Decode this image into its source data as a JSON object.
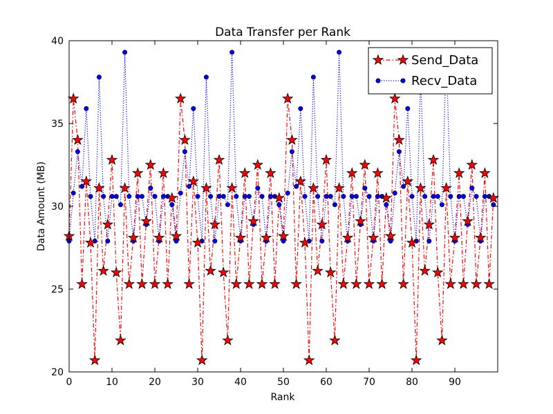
{
  "chart_data": {
    "type": "line",
    "title": "Data Transfer per Rank",
    "xlabel": "Rank",
    "ylabel": "Data Amount (MB)",
    "xlim": [
      0,
      100
    ],
    "ylim": [
      20,
      40
    ],
    "xticks": [
      0,
      10,
      20,
      30,
      40,
      50,
      60,
      70,
      80,
      90
    ],
    "yticks": [
      20,
      25,
      30,
      35,
      40
    ],
    "grid": false,
    "legend_position": "top-right",
    "series": [
      {
        "name": "Send_Data",
        "color": "#ff0000",
        "line_style": "dashdot",
        "marker": "star",
        "x": [
          0,
          1,
          2,
          3,
          4,
          5,
          6,
          7,
          8,
          9,
          10,
          11,
          12,
          13,
          14,
          15,
          16,
          17,
          18,
          19,
          20,
          21,
          22,
          23,
          24,
          25,
          26,
          27,
          28,
          29,
          30,
          31,
          32,
          33,
          34,
          35,
          36,
          37,
          38,
          39,
          40,
          41,
          42,
          43,
          44,
          45,
          46,
          47,
          48,
          49,
          50,
          51,
          52,
          53,
          54,
          55,
          56,
          57,
          58,
          59,
          60,
          61,
          62,
          63,
          64,
          65,
          66,
          67,
          68,
          69,
          70,
          71,
          72,
          73,
          74,
          75,
          76,
          77,
          78,
          79,
          80,
          81,
          82,
          83,
          84,
          85,
          86,
          87,
          88,
          89,
          90,
          91,
          92,
          93,
          94,
          95,
          96,
          97,
          98,
          99
        ],
        "values": [
          28.2,
          36.5,
          34.0,
          25.3,
          31.5,
          27.8,
          20.7,
          31.1,
          26.1,
          28.9,
          32.8,
          26.0,
          21.9,
          31.1,
          25.3,
          28.1,
          32.0,
          25.3,
          29.1,
          32.5,
          25.3,
          28.1,
          32.0,
          25.3,
          30.5,
          28.2,
          36.5,
          34.0,
          25.3,
          31.5,
          27.8,
          20.7,
          31.1,
          26.1,
          28.9,
          32.8,
          26.0,
          21.9,
          31.1,
          25.3,
          28.1,
          32.0,
          25.3,
          29.1,
          32.5,
          25.3,
          28.1,
          32.0,
          25.3,
          30.5,
          28.2,
          36.5,
          34.0,
          25.3,
          31.5,
          27.8,
          20.7,
          31.1,
          26.1,
          28.9,
          32.8,
          26.0,
          21.9,
          31.1,
          25.3,
          28.1,
          32.0,
          25.3,
          29.1,
          32.5,
          25.3,
          28.1,
          32.0,
          25.3,
          30.5,
          28.2,
          36.5,
          34.0,
          25.3,
          31.5,
          27.8,
          20.7,
          31.1,
          26.1,
          28.9,
          32.8,
          26.0,
          21.9,
          31.1,
          25.3,
          28.1,
          32.0,
          25.3,
          29.1,
          32.5,
          25.3,
          28.1,
          32.0,
          25.3,
          30.5
        ]
      },
      {
        "name": "Recv_Data",
        "color": "#0000ff",
        "line_style": "dotted",
        "marker": "circle",
        "x": [
          0,
          1,
          2,
          3,
          4,
          5,
          6,
          7,
          8,
          9,
          10,
          11,
          12,
          13,
          14,
          15,
          16,
          17,
          18,
          19,
          20,
          21,
          22,
          23,
          24,
          25,
          26,
          27,
          28,
          29,
          30,
          31,
          32,
          33,
          34,
          35,
          36,
          37,
          38,
          39,
          40,
          41,
          42,
          43,
          44,
          45,
          46,
          47,
          48,
          49,
          50,
          51,
          52,
          53,
          54,
          55,
          56,
          57,
          58,
          59,
          60,
          61,
          62,
          63,
          64,
          65,
          66,
          67,
          68,
          69,
          70,
          71,
          72,
          73,
          74,
          75,
          76,
          77,
          78,
          79,
          80,
          81,
          82,
          83,
          84,
          85,
          86,
          87,
          88,
          89,
          90,
          91,
          92,
          93,
          94,
          95,
          96,
          97,
          98,
          99
        ],
        "values": [
          27.9,
          30.8,
          33.3,
          31.2,
          35.9,
          30.6,
          27.9,
          37.8,
          30.6,
          27.9,
          30.6,
          30.6,
          30.1,
          39.3,
          30.6,
          27.9,
          30.6,
          30.6,
          28.9,
          31.1,
          30.6,
          27.9,
          30.6,
          30.6,
          30.1,
          27.9,
          30.8,
          33.3,
          31.2,
          35.9,
          30.6,
          27.9,
          37.8,
          30.6,
          27.9,
          30.6,
          30.6,
          30.1,
          39.3,
          30.6,
          27.9,
          30.6,
          30.6,
          28.9,
          31.1,
          30.6,
          27.9,
          30.6,
          30.6,
          30.1,
          27.9,
          30.8,
          33.3,
          31.2,
          35.9,
          30.6,
          27.9,
          37.8,
          30.6,
          27.9,
          30.6,
          30.6,
          30.1,
          39.3,
          30.6,
          27.9,
          30.6,
          30.6,
          28.9,
          31.1,
          30.6,
          27.9,
          30.6,
          30.6,
          30.1,
          27.9,
          30.8,
          33.3,
          31.2,
          35.9,
          30.6,
          27.9,
          37.8,
          30.6,
          27.9,
          30.6,
          30.6,
          30.1,
          39.3,
          30.6,
          27.9,
          30.6,
          30.6,
          28.9,
          31.1,
          30.6,
          27.9,
          30.6,
          30.6,
          30.1
        ]
      }
    ]
  }
}
